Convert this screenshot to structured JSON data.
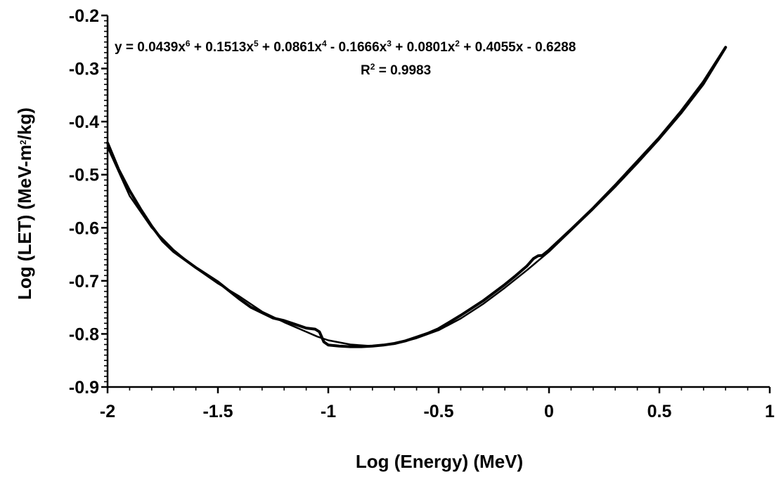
{
  "chart_data": {
    "type": "line",
    "title": "",
    "xlabel": "Log (Energy) (MeV)",
    "ylabel_parts": [
      "Log (LET) (MeV-m",
      "2",
      "/kg)"
    ],
    "xlim": [
      -2,
      1
    ],
    "ylim": [
      -0.9,
      -0.2
    ],
    "x_ticks": [
      -2,
      -1.5,
      -1,
      -0.5,
      0,
      0.5,
      1
    ],
    "x_tick_labels": [
      "-2",
      "-1.5",
      "-1",
      "-0.5",
      "0",
      "0.5",
      "1"
    ],
    "y_ticks": [
      -0.9,
      -0.8,
      -0.7,
      -0.6,
      -0.5,
      -0.4,
      -0.3,
      -0.2
    ],
    "y_tick_labels": [
      "-0.9",
      "-0.8",
      "-0.7",
      "-0.6",
      "-0.5",
      "-0.4",
      "-0.3",
      "-0.2"
    ],
    "grid": false,
    "legend": "none",
    "line_color": "#000000",
    "annotation": {
      "equation_parts": [
        {
          "t": "y = 0.0439x",
          "sup": false
        },
        {
          "t": "6",
          "sup": true
        },
        {
          "t": " + 0.1513x",
          "sup": false
        },
        {
          "t": "5",
          "sup": true
        },
        {
          "t": " + 0.0861x",
          "sup": false
        },
        {
          "t": "4",
          "sup": true
        },
        {
          "t": " - 0.1666x",
          "sup": false
        },
        {
          "t": "3",
          "sup": true
        },
        {
          "t": " + 0.0801x",
          "sup": false
        },
        {
          "t": "2",
          "sup": true
        },
        {
          "t": " + 0.4055x - 0.6288",
          "sup": false
        }
      ],
      "r2_parts": [
        {
          "t": "R",
          "sup": false
        },
        {
          "t": "2",
          "sup": true
        },
        {
          "t": " = 0.9983",
          "sup": false
        }
      ]
    },
    "series": [
      {
        "x": [
          -2.0,
          -1.95,
          -1.9,
          -1.85,
          -1.8,
          -1.75,
          -1.7,
          -1.6,
          -1.5,
          -1.4,
          -1.35,
          -1.3,
          -1.25,
          -1.2,
          -1.15,
          -1.1,
          -1.06,
          -1.04,
          -1.02,
          -1.0,
          -0.95,
          -0.9,
          -0.85,
          -0.8,
          -0.75,
          -0.7,
          -0.65,
          -0.6,
          -0.55,
          -0.5,
          -0.4,
          -0.3,
          -0.2,
          -0.15,
          -0.1,
          -0.07,
          -0.05,
          -0.03,
          0.0,
          0.1,
          0.2,
          0.3,
          0.4,
          0.5,
          0.6,
          0.7,
          0.8
        ],
        "y": [
          -0.44,
          -0.49,
          -0.53,
          -0.565,
          -0.597,
          -0.625,
          -0.645,
          -0.675,
          -0.702,
          -0.735,
          -0.75,
          -0.76,
          -0.77,
          -0.775,
          -0.782,
          -0.789,
          -0.791,
          -0.796,
          -0.815,
          -0.821,
          -0.823,
          -0.824,
          -0.824,
          -0.823,
          -0.821,
          -0.818,
          -0.813,
          -0.806,
          -0.799,
          -0.79,
          -0.765,
          -0.738,
          -0.707,
          -0.69,
          -0.672,
          -0.658,
          -0.653,
          -0.652,
          -0.642,
          -0.603,
          -0.563,
          -0.52,
          -0.475,
          -0.43,
          -0.38,
          -0.325,
          -0.26
        ]
      },
      {
        "x": [
          -2.0,
          -1.9,
          -1.8,
          -1.7,
          -1.6,
          -1.5,
          -1.4,
          -1.3,
          -1.2,
          -1.1,
          -1.05,
          -1.0,
          -0.9,
          -0.8,
          -0.7,
          -0.6,
          -0.5,
          -0.4,
          -0.3,
          -0.2,
          -0.1,
          0.0,
          0.1,
          0.2,
          0.3,
          0.4,
          0.5,
          0.6,
          0.7,
          0.8
        ],
        "y": [
          -0.448,
          -0.54,
          -0.6,
          -0.642,
          -0.676,
          -0.705,
          -0.73,
          -0.758,
          -0.778,
          -0.796,
          -0.805,
          -0.812,
          -0.82,
          -0.823,
          -0.819,
          -0.808,
          -0.793,
          -0.771,
          -0.744,
          -0.713,
          -0.68,
          -0.645,
          -0.605,
          -0.565,
          -0.523,
          -0.479,
          -0.433,
          -0.384,
          -0.33,
          -0.262
        ]
      }
    ]
  }
}
